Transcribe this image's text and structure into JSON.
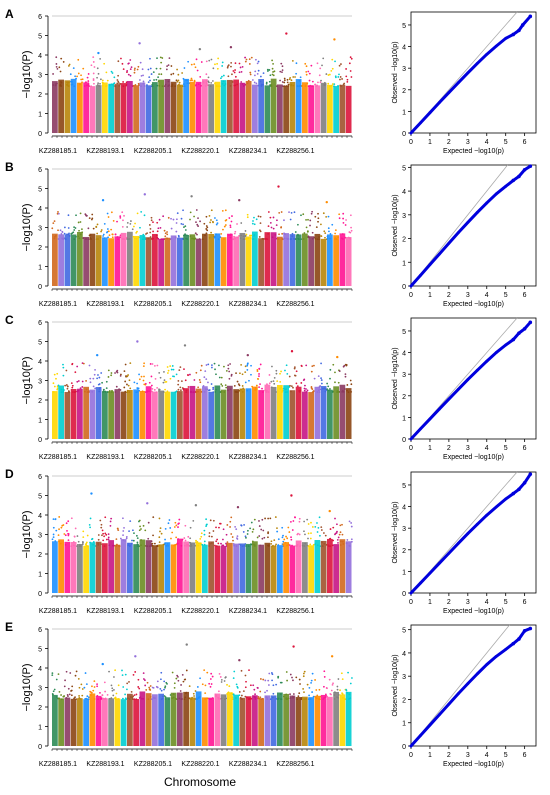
{
  "figure": {
    "xlabel": "Chromosome"
  },
  "chart_data": [
    {
      "type": "scatter",
      "panel": "A",
      "subtype": "manhattan",
      "ylabel": "−log10(P)",
      "ylim": [
        0,
        6
      ],
      "yticks": [
        0,
        1,
        2,
        3,
        4,
        5,
        6
      ],
      "threshold": 6,
      "categories": [
        "KZ288185.1",
        "KZ288193.1",
        "KZ288205.1",
        "KZ288220.1",
        "KZ288234.1",
        "KZ288256.1"
      ],
      "peak_values": [
        4.1,
        4.6,
        4.3,
        4.4,
        5.1,
        4.8
      ],
      "color_cycle": [
        "#8B3A62",
        "#D2691E",
        "#FFD700",
        "#1E90FF",
        "#2E8B57",
        "#DC143C",
        "#FF69B4",
        "#8B4513",
        "#9370DB",
        "#00CED1",
        "#FF8C00",
        "#6B8E23",
        "#C71585",
        "#808080",
        "#B8860B",
        "#4169E1",
        "#A0522D",
        "#FF1493"
      ],
      "threshold_color": "#bbbbbb"
    },
    {
      "type": "scatter",
      "panel": "A",
      "subtype": "qq",
      "xlabel": "Expected −log10(p)",
      "ylabel": "Observed −log10(p)",
      "xlim": [
        0,
        6.6
      ],
      "ylim": [
        0,
        5.6
      ],
      "xticks": [
        0,
        1,
        2,
        3,
        4,
        5,
        6
      ],
      "yticks": [
        0,
        1,
        2,
        3,
        4,
        5
      ],
      "x": [
        0,
        0.5,
        1,
        1.5,
        2,
        2.5,
        3,
        3.5,
        4,
        4.5,
        5,
        5.4,
        5.7,
        5.9,
        6.3
      ],
      "y": [
        0,
        0.47,
        0.94,
        1.41,
        1.87,
        2.33,
        2.78,
        3.22,
        3.64,
        4.02,
        4.38,
        4.56,
        4.75,
        5.0,
        5.4
      ],
      "color": "#0000dd"
    },
    {
      "type": "scatter",
      "panel": "B",
      "subtype": "manhattan",
      "ylabel": "−log10(P)",
      "ylim": [
        0,
        6
      ],
      "yticks": [
        0,
        1,
        2,
        3,
        4,
        5,
        6
      ],
      "threshold": 6,
      "categories": [
        "KZ288185.1",
        "KZ288193.1",
        "KZ288205.1",
        "KZ288220.1",
        "KZ288234.1",
        "KZ288256.1"
      ],
      "peak_values": [
        4.4,
        4.7,
        4.6,
        4.4,
        5.1,
        4.3
      ],
      "color_cycle": [
        "#8B3A62",
        "#D2691E",
        "#FFD700",
        "#1E90FF",
        "#2E8B57",
        "#DC143C",
        "#FF69B4",
        "#8B4513",
        "#9370DB",
        "#00CED1",
        "#FF8C00",
        "#6B8E23",
        "#C71585",
        "#808080",
        "#B8860B",
        "#4169E1",
        "#A0522D",
        "#FF1493"
      ],
      "threshold_color": "#bbbbbb"
    },
    {
      "type": "scatter",
      "panel": "B",
      "subtype": "qq",
      "xlabel": "Expected −log10(p)",
      "ylabel": "Observed −log10(p)",
      "xlim": [
        0,
        6.6
      ],
      "ylim": [
        0,
        5.1
      ],
      "xticks": [
        0,
        1,
        2,
        3,
        4,
        5,
        6
      ],
      "yticks": [
        0,
        1,
        2,
        3,
        4,
        5
      ],
      "x": [
        0,
        0.5,
        1,
        1.5,
        2,
        2.5,
        3,
        3.5,
        4,
        4.5,
        5,
        5.4,
        5.7,
        6.0,
        6.3
      ],
      "y": [
        0,
        0.45,
        0.9,
        1.35,
        1.8,
        2.25,
        2.68,
        3.1,
        3.5,
        3.88,
        4.2,
        4.45,
        4.62,
        4.9,
        5.05
      ],
      "color": "#0000dd"
    },
    {
      "type": "scatter",
      "panel": "C",
      "subtype": "manhattan",
      "ylabel": "−log10(P)",
      "ylim": [
        0,
        6
      ],
      "yticks": [
        0,
        1,
        2,
        3,
        4,
        5,
        6
      ],
      "threshold": 6,
      "categories": [
        "KZ288185.1",
        "KZ288193.1",
        "KZ288205.1",
        "KZ288220.1",
        "KZ288234.1",
        "KZ288256.1"
      ],
      "peak_values": [
        4.3,
        5.0,
        4.8,
        4.3,
        4.5,
        4.2
      ],
      "color_cycle": [
        "#8B3A62",
        "#D2691E",
        "#FFD700",
        "#1E90FF",
        "#2E8B57",
        "#DC143C",
        "#FF69B4",
        "#8B4513",
        "#9370DB",
        "#00CED1",
        "#FF8C00",
        "#6B8E23",
        "#C71585",
        "#808080",
        "#B8860B",
        "#4169E1",
        "#A0522D",
        "#FF1493"
      ],
      "threshold_color": "#bbbbbb"
    },
    {
      "type": "scatter",
      "panel": "C",
      "subtype": "qq",
      "xlabel": "Expected −log10(p)",
      "ylabel": "Observed −log10(p)",
      "xlim": [
        0,
        6.6
      ],
      "ylim": [
        0,
        5.6
      ],
      "xticks": [
        0,
        1,
        2,
        3,
        4,
        5,
        6
      ],
      "yticks": [
        0,
        1,
        2,
        3,
        4,
        5
      ],
      "x": [
        0,
        0.5,
        1,
        1.5,
        2,
        2.5,
        3,
        3.5,
        4,
        4.5,
        5,
        5.4,
        5.7,
        6.0,
        6.3
      ],
      "y": [
        0,
        0.47,
        0.93,
        1.39,
        1.85,
        2.3,
        2.75,
        3.18,
        3.6,
        4.0,
        4.35,
        4.6,
        4.9,
        5.1,
        5.4
      ],
      "color": "#0000dd"
    },
    {
      "type": "scatter",
      "panel": "D",
      "subtype": "manhattan",
      "ylabel": "−log10(P)",
      "ylim": [
        0,
        6
      ],
      "yticks": [
        0,
        1,
        2,
        3,
        4,
        5,
        6
      ],
      "threshold": 6,
      "categories": [
        "KZ288185.1",
        "KZ288193.1",
        "KZ288205.1",
        "KZ288220.1",
        "KZ288234.1",
        "KZ288256.1"
      ],
      "peak_values": [
        5.1,
        4.6,
        4.5,
        4.4,
        5.0,
        4.2
      ],
      "color_cycle": [
        "#8B3A62",
        "#D2691E",
        "#FFD700",
        "#1E90FF",
        "#2E8B57",
        "#DC143C",
        "#FF69B4",
        "#8B4513",
        "#9370DB",
        "#00CED1",
        "#FF8C00",
        "#6B8E23",
        "#C71585",
        "#808080",
        "#B8860B",
        "#4169E1",
        "#A0522D",
        "#FF1493"
      ],
      "threshold_color": "#bbbbbb"
    },
    {
      "type": "scatter",
      "panel": "D",
      "subtype": "qq",
      "xlabel": "Expected −log10(p)",
      "ylabel": "Observed −log10(p)",
      "xlim": [
        0,
        6.6
      ],
      "ylim": [
        0,
        5.6
      ],
      "xticks": [
        0,
        1,
        2,
        3,
        4,
        5,
        6
      ],
      "yticks": [
        0,
        1,
        2,
        3,
        4,
        5
      ],
      "x": [
        0,
        0.5,
        1,
        1.5,
        2,
        2.5,
        3,
        3.5,
        4,
        4.5,
        5,
        5.4,
        5.7,
        6.0,
        6.3
      ],
      "y": [
        0,
        0.46,
        0.92,
        1.38,
        1.84,
        2.3,
        2.75,
        3.18,
        3.6,
        3.98,
        4.35,
        4.6,
        4.8,
        5.1,
        5.5
      ],
      "color": "#0000dd"
    },
    {
      "type": "scatter",
      "panel": "E",
      "subtype": "manhattan",
      "ylabel": "−log10(P)",
      "ylim": [
        0,
        6
      ],
      "yticks": [
        0,
        1,
        2,
        3,
        4,
        5,
        6
      ],
      "threshold": 6,
      "categories": [
        "KZ288185.1",
        "KZ288193.1",
        "KZ288205.1",
        "KZ288220.1",
        "KZ288234.1",
        "KZ288256.1"
      ],
      "peak_values": [
        4.2,
        4.6,
        5.2,
        4.4,
        5.1,
        4.6
      ],
      "color_cycle": [
        "#8B3A62",
        "#D2691E",
        "#FFD700",
        "#1E90FF",
        "#2E8B57",
        "#DC143C",
        "#FF69B4",
        "#8B4513",
        "#9370DB",
        "#00CED1",
        "#FF8C00",
        "#6B8E23",
        "#C71585",
        "#808080",
        "#B8860B",
        "#4169E1",
        "#A0522D",
        "#FF1493"
      ],
      "threshold_color": "#bbbbbb"
    },
    {
      "type": "scatter",
      "panel": "E",
      "subtype": "qq",
      "xlabel": "Expected −log10(p)",
      "ylabel": "Observed −log10(p)",
      "xlim": [
        0,
        6.6
      ],
      "ylim": [
        0,
        5.2
      ],
      "xticks": [
        0,
        1,
        2,
        3,
        4,
        5,
        6
      ],
      "yticks": [
        0,
        1,
        2,
        3,
        4,
        5
      ],
      "x": [
        0,
        0.5,
        1,
        1.5,
        2,
        2.5,
        3,
        3.5,
        4,
        4.5,
        5,
        5.4,
        5.7,
        6.0,
        6.3
      ],
      "y": [
        0,
        0.45,
        0.9,
        1.35,
        1.8,
        2.25,
        2.68,
        3.1,
        3.5,
        3.85,
        4.15,
        4.4,
        4.6,
        4.95,
        5.05
      ],
      "color": "#0000dd"
    }
  ]
}
